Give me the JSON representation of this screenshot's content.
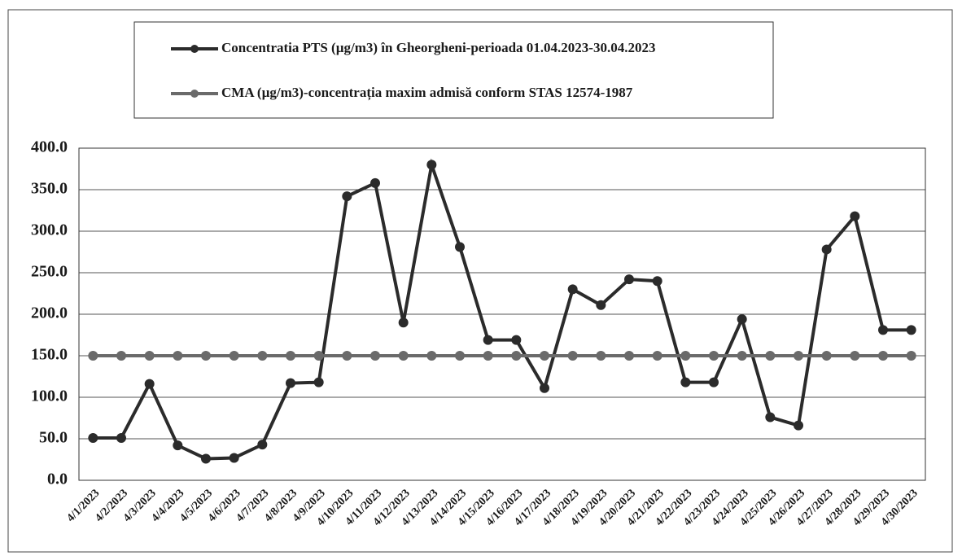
{
  "chart_data": {
    "type": "line",
    "categories": [
      "4/1/2023",
      "4/2/2023",
      "4/3/2023",
      "4/4/2023",
      "4/5/2023",
      "4/6/2023",
      "4/7/2023",
      "4/8/2023",
      "4/9/2023",
      "4/10/2023",
      "4/11/2023",
      "4/12/2023",
      "4/13/2023",
      "4/14/2023",
      "4/15/2023",
      "4/16/2023",
      "4/17/2023",
      "4/18/2023",
      "4/19/2023",
      "4/20/2023",
      "4/21/2023",
      "4/22/2023",
      "4/23/2023",
      "4/24/2023",
      "4/25/2023",
      "4/26/2023",
      "4/27/2023",
      "4/28/2023",
      "4/29/2023",
      "4/30/2023"
    ],
    "series": [
      {
        "name": "Concentratia PTS (µg/m3) în Gheorgheni-perioada 01.04.2023-30.04.2023",
        "color": "#2b2b2b",
        "values": [
          51,
          51,
          116,
          42,
          26,
          27,
          43,
          117,
          118,
          342,
          358,
          190,
          380,
          281,
          169,
          169,
          111,
          230,
          211,
          242,
          240,
          118,
          118,
          194,
          76,
          66,
          278,
          318,
          181,
          181
        ]
      },
      {
        "name": "CMA (µg/m3)-concentrația maxim admisă conform STAS 12574-1987",
        "color": "#6a6a6a",
        "values": [
          150,
          150,
          150,
          150,
          150,
          150,
          150,
          150,
          150,
          150,
          150,
          150,
          150,
          150,
          150,
          150,
          150,
          150,
          150,
          150,
          150,
          150,
          150,
          150,
          150,
          150,
          150,
          150,
          150,
          150
        ]
      }
    ],
    "ylim": [
      0,
      400
    ],
    "yticks": [
      {
        "value": 0,
        "label": "0.0"
      },
      {
        "value": 50,
        "label": "50.0"
      },
      {
        "value": 100,
        "label": "100.0"
      },
      {
        "value": 150,
        "label": "150.0"
      },
      {
        "value": 200,
        "label": "200.0"
      },
      {
        "value": 250,
        "label": "250.0"
      },
      {
        "value": 300,
        "label": "300.0"
      },
      {
        "value": 350,
        "label": "350.0"
      },
      {
        "value": 400,
        "label": "400.0"
      }
    ],
    "grid": true
  }
}
